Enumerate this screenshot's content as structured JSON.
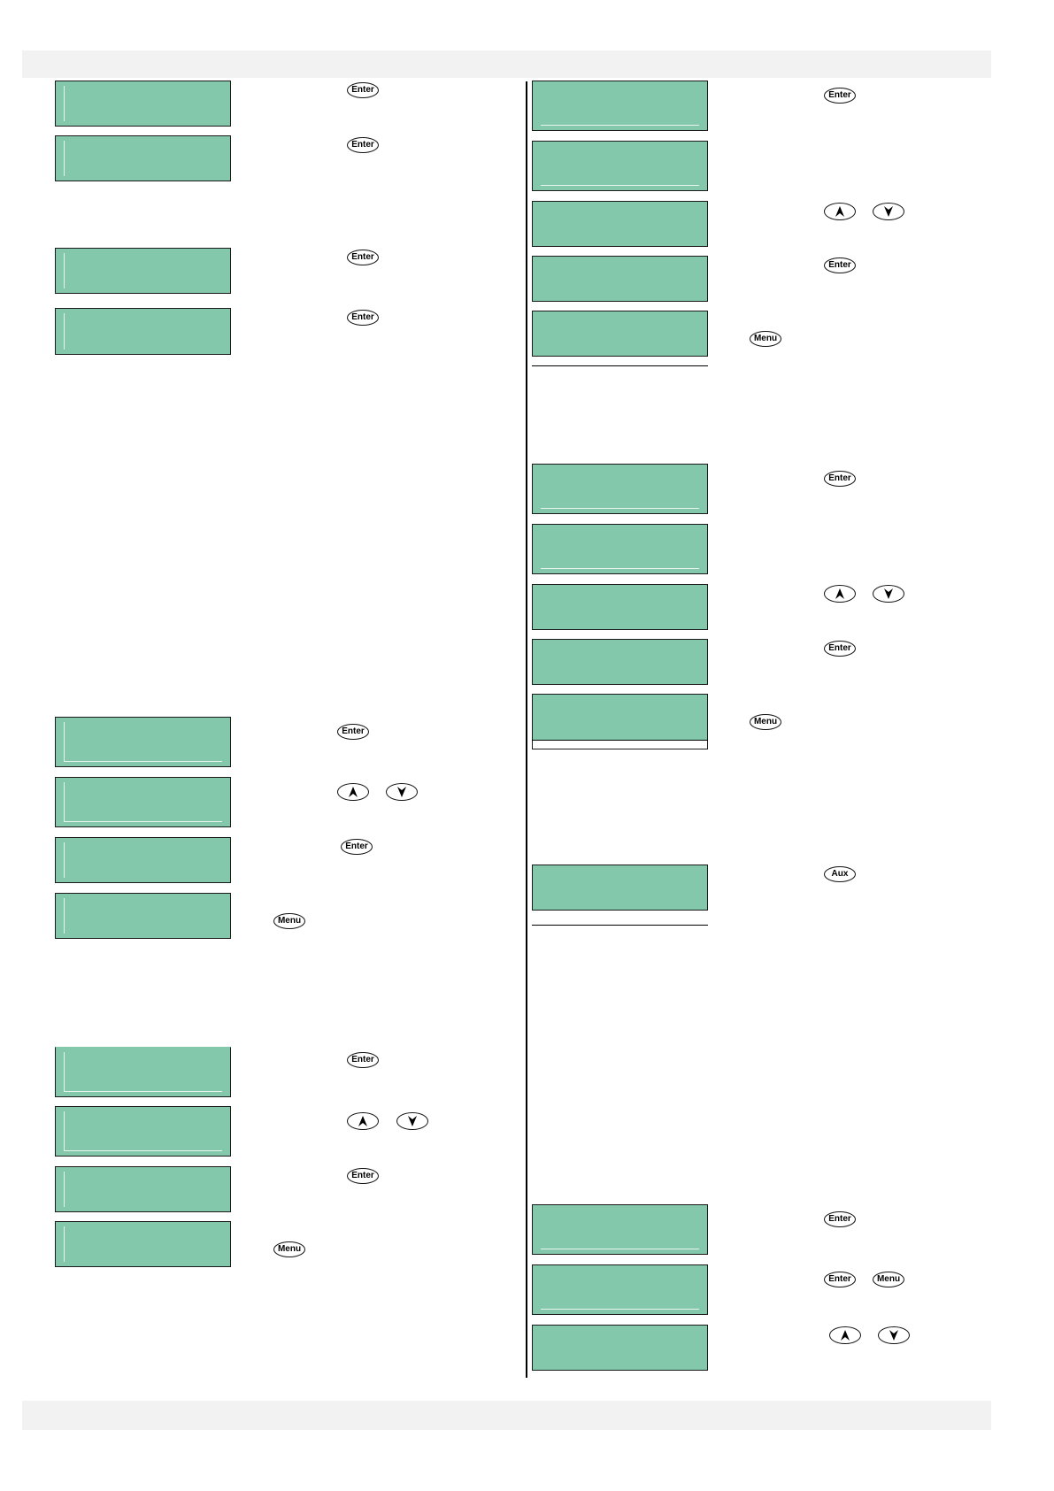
{
  "keys": {
    "enter_label": "Enter",
    "menu_label": "Menu",
    "aux_label": "Aux",
    "up_icon": "up-arrow-icon",
    "down_icon": "down-arrow-icon"
  },
  "colors": {
    "lcd_background": "#84c8ac",
    "lcd_border": "#1a1a1a",
    "band": "#f2f2f2"
  }
}
